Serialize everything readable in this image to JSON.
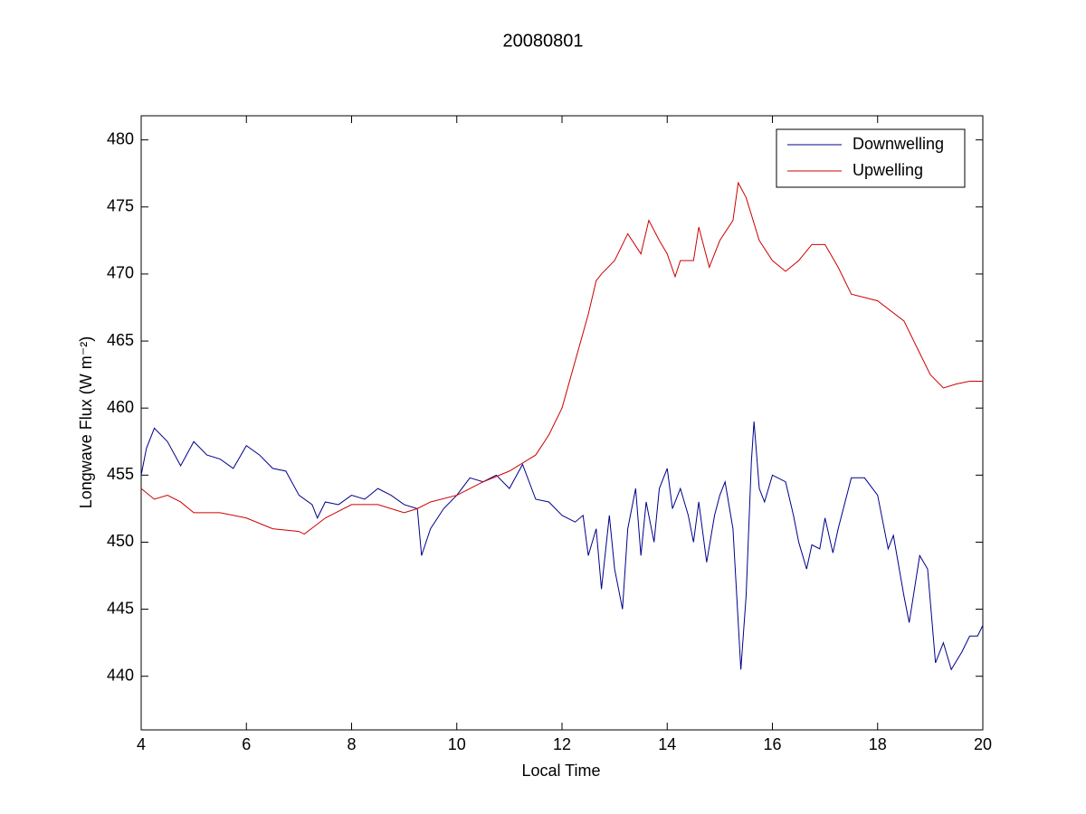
{
  "chart_data": {
    "type": "line",
    "title": "20080801",
    "xlabel": "Local Time",
    "ylabel": "Longwave Flux (W m⁻²)",
    "xlim": [
      4,
      20
    ],
    "xticks": [
      4,
      6,
      8,
      10,
      12,
      14,
      16,
      18,
      20
    ],
    "ylim": [
      436,
      481.8
    ],
    "yticks": [
      440,
      445,
      450,
      455,
      460,
      465,
      470,
      475,
      480
    ],
    "grid": false,
    "legend": "upper right",
    "series": [
      {
        "name": "Downwelling",
        "color": "#00008b",
        "x": [
          4.0,
          4.1,
          4.25,
          4.5,
          4.75,
          5.0,
          5.25,
          5.5,
          5.75,
          6.0,
          6.25,
          6.5,
          6.75,
          7.0,
          7.25,
          7.35,
          7.5,
          7.75,
          8.0,
          8.25,
          8.5,
          8.75,
          9.0,
          9.25,
          9.33,
          9.5,
          9.75,
          10.0,
          10.25,
          10.5,
          10.75,
          11.0,
          11.25,
          11.5,
          11.75,
          12.0,
          12.25,
          12.4,
          12.5,
          12.65,
          12.75,
          12.9,
          13.0,
          13.15,
          13.25,
          13.4,
          13.5,
          13.6,
          13.75,
          13.85,
          14.0,
          14.1,
          14.25,
          14.4,
          14.5,
          14.6,
          14.75,
          14.9,
          15.0,
          15.1,
          15.25,
          15.4,
          15.5,
          15.6,
          15.65,
          15.75,
          15.85,
          16.0,
          16.25,
          16.4,
          16.5,
          16.65,
          16.75,
          16.9,
          17.0,
          17.15,
          17.25,
          17.5,
          17.75,
          18.0,
          18.2,
          18.3,
          18.5,
          18.6,
          18.8,
          18.95,
          19.1,
          19.25,
          19.4,
          19.6,
          19.75,
          19.9,
          20.0
        ],
        "values": [
          455,
          457,
          458.5,
          457.5,
          455.7,
          457.5,
          456.5,
          456.2,
          455.5,
          457.2,
          456.5,
          455.5,
          455.3,
          453.5,
          452.8,
          451.8,
          453,
          452.8,
          453.5,
          453.2,
          454,
          453.5,
          452.8,
          452.5,
          449,
          451,
          452.5,
          453.5,
          454.8,
          454.5,
          455,
          454,
          455.8,
          453.2,
          453,
          452,
          451.5,
          452,
          449,
          451,
          446.5,
          452,
          448,
          445,
          451,
          454,
          449,
          453,
          450,
          454,
          455.5,
          452.5,
          454,
          452,
          450,
          453,
          448.5,
          452,
          453.5,
          454.5,
          451,
          440.5,
          446,
          456,
          459,
          454,
          453,
          455,
          454.5,
          452,
          450,
          448,
          449.8,
          449.5,
          451.8,
          449.2,
          451,
          454.8,
          454.8,
          453.5,
          449.5,
          450.5,
          446,
          444,
          449,
          448,
          441,
          442.5,
          440.5,
          441.8,
          443,
          443,
          443.8
        ]
      },
      {
        "name": "Upwelling",
        "color": "#cc0000",
        "x": [
          4.0,
          4.25,
          4.5,
          4.75,
          5.0,
          5.5,
          6.0,
          6.5,
          7.0,
          7.1,
          7.5,
          8.0,
          8.5,
          9.0,
          9.25,
          9.5,
          10.0,
          10.5,
          11.0,
          11.5,
          11.75,
          12.0,
          12.25,
          12.5,
          12.65,
          12.75,
          13.0,
          13.25,
          13.5,
          13.65,
          13.85,
          14.0,
          14.15,
          14.25,
          14.5,
          14.6,
          14.8,
          15.0,
          15.25,
          15.35,
          15.5,
          15.75,
          16.0,
          16.25,
          16.5,
          16.75,
          17.0,
          17.25,
          17.5,
          18.0,
          18.5,
          18.75,
          19.0,
          19.25,
          19.5,
          19.75,
          20.0
        ],
        "values": [
          454,
          453.2,
          453.5,
          453,
          452.2,
          452.2,
          451.8,
          451,
          450.8,
          450.6,
          451.8,
          452.8,
          452.8,
          452.2,
          452.5,
          453,
          453.5,
          454.5,
          455.3,
          456.5,
          458,
          460,
          463.5,
          467,
          469.5,
          470,
          471,
          473,
          471.5,
          474,
          472.5,
          471.5,
          469.8,
          471,
          471,
          473.5,
          470.5,
          472.5,
          474,
          476.8,
          475.7,
          472.5,
          471,
          470.2,
          471,
          472.2,
          472.2,
          470.5,
          468.5,
          468,
          466.5,
          464.5,
          462.5,
          461.5,
          461.8,
          462,
          462
        ]
      }
    ]
  }
}
